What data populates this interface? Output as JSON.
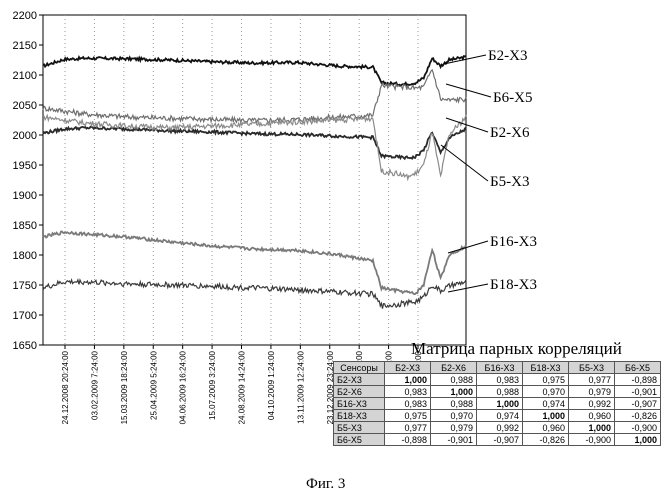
{
  "chart_data": {
    "type": "line",
    "ylim": [
      1650,
      2200
    ],
    "yticks": [
      1650,
      1700,
      1750,
      1800,
      1850,
      1900,
      1950,
      2000,
      2050,
      2100,
      2150,
      2200
    ],
    "xticks": [
      "24.12.2008 20:24:00",
      "03.02.2009 7:24:00",
      "15.03.2009 18:24:00",
      "25.04.2009 5:24:00",
      "04.06.2009 16:24:00",
      "15.07.2009 3:24:00",
      "24.08.2009 14:24:00",
      "04.10.2009 1:24:00",
      "13.11.2009 12:24:00",
      "23.12.2009 23:24:00",
      ":00",
      ":00",
      ":00"
    ],
    "x": [
      0,
      5,
      10,
      20,
      30,
      40,
      50,
      60,
      70,
      78,
      80,
      84,
      86,
      88,
      90,
      92,
      94,
      96,
      100
    ],
    "grid": true,
    "series": [
      {
        "name": "Б2-Х3",
        "color": "#111111",
        "values": [
          2115,
          2126,
          2128,
          2127,
          2125,
          2122,
          2120,
          2121,
          2115,
          2113,
          2087,
          2085,
          2085,
          2087,
          2095,
          2128,
          2115,
          2125,
          2130
        ]
      },
      {
        "name": "Б6-Х5",
        "color": "#6f6f6f",
        "values": [
          2045,
          2040,
          2035,
          2030,
          2028,
          2026,
          2024,
          2026,
          2030,
          2033,
          2083,
          2080,
          2080,
          2078,
          2080,
          2110,
          2060,
          2058,
          2060
        ]
      },
      {
        "name": "Б2-Х6",
        "color": "#2a2a2a",
        "values": [
          2003,
          2010,
          2012,
          2010,
          2007,
          2005,
          2002,
          2001,
          1998,
          1996,
          1965,
          1963,
          1962,
          1963,
          1975,
          2005,
          1970,
          1995,
          2010
        ]
      },
      {
        "name": "Б5-Х3",
        "color": "#8a8a8a",
        "values": [
          2030,
          2025,
          2020,
          2015,
          2012,
          2015,
          2018,
          2022,
          2025,
          2028,
          1940,
          1935,
          1930,
          1935,
          1950,
          2005,
          1930,
          2000,
          2030
        ]
      },
      {
        "name": "Б16-Х3",
        "color": "#7a7a7a",
        "values": [
          1830,
          1838,
          1835,
          1830,
          1822,
          1815,
          1810,
          1808,
          1800,
          1790,
          1745,
          1740,
          1738,
          1735,
          1750,
          1810,
          1760,
          1800,
          1815
        ]
      },
      {
        "name": "Б18-Х3",
        "color": "#3a3a3a",
        "values": [
          1745,
          1755,
          1755,
          1752,
          1750,
          1748,
          1745,
          1742,
          1738,
          1735,
          1715,
          1718,
          1720,
          1722,
          1730,
          1750,
          1740,
          1748,
          1755
        ]
      }
    ]
  },
  "matrix": {
    "title": "Матрица парных корреляций",
    "corner": "Сенсоры",
    "headers": [
      "Б2-Х3",
      "Б2-Х6",
      "Б16-Х3",
      "Б18-Х3",
      "Б5-Х3",
      "Б6-Х5"
    ],
    "rows": [
      {
        "label": "Б2-Х3",
        "values": [
          "1,000",
          "0,988",
          "0,983",
          "0,975",
          "0,977",
          "-0,898"
        ]
      },
      {
        "label": "Б2-Х6",
        "values": [
          "0,983",
          "1,000",
          "0,988",
          "0,970",
          "0,979",
          "-0,901"
        ]
      },
      {
        "label": "Б16-Х3",
        "values": [
          "0,983",
          "0,988",
          "1,000",
          "0,974",
          "0,992",
          "-0,907"
        ]
      },
      {
        "label": "Б18-Х3",
        "values": [
          "0,975",
          "0,970",
          "0,974",
          "1,000",
          "0,960",
          "-0,826"
        ]
      },
      {
        "label": "Б5-Х3",
        "values": [
          "0,977",
          "0,979",
          "0,992",
          "0,960",
          "1,000",
          "-0,900"
        ]
      },
      {
        "label": "Б6-Х5",
        "values": [
          "-0,898",
          "-0,901",
          "-0,907",
          "-0,826",
          "-0,900",
          "1,000"
        ]
      }
    ]
  },
  "caption": "Фиг. 3"
}
